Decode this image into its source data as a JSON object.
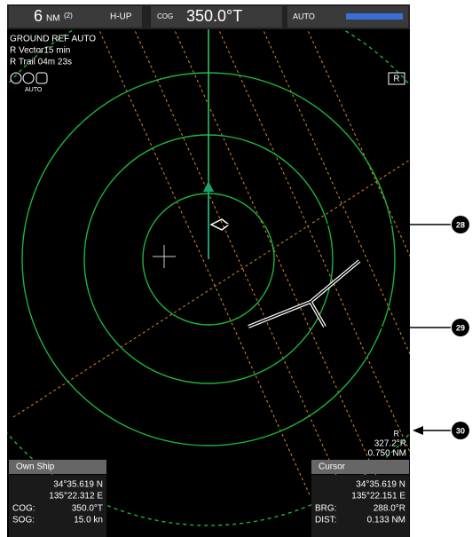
{
  "top_bar": {
    "range": "6",
    "range_unit": "NM",
    "range_index": "(2)",
    "mode": "H-UP",
    "cog_label": "COG",
    "cog_value": "350.0°T",
    "gain_mode": "AUTO"
  },
  "status": [
    "GROUND REF AUTO",
    "R Vector15 min",
    "R Trail 04m 23s"
  ],
  "icon_label": "AUTO",
  "ring_marker": "R",
  "callouts": [
    "28",
    "29",
    "30"
  ],
  "ebl": {
    "marker": "R",
    "bearing": "327.2°R",
    "range": "0.750 NM"
  },
  "own_ship": {
    "title": "Own Ship",
    "lat": "34°35.619 N",
    "lon": "135°22.312 E",
    "rows": [
      [
        "COG:",
        "350.0°T"
      ],
      [
        "SOG:",
        "15.0 kn"
      ]
    ]
  },
  "cursor": {
    "title": "Cursor",
    "lat": "34°35.619 N",
    "lon": "135°22.151 E",
    "rows": [
      [
        "BRG:",
        "288.0°R"
      ],
      [
        "DIST:",
        "0.133 NM"
      ]
    ]
  }
}
